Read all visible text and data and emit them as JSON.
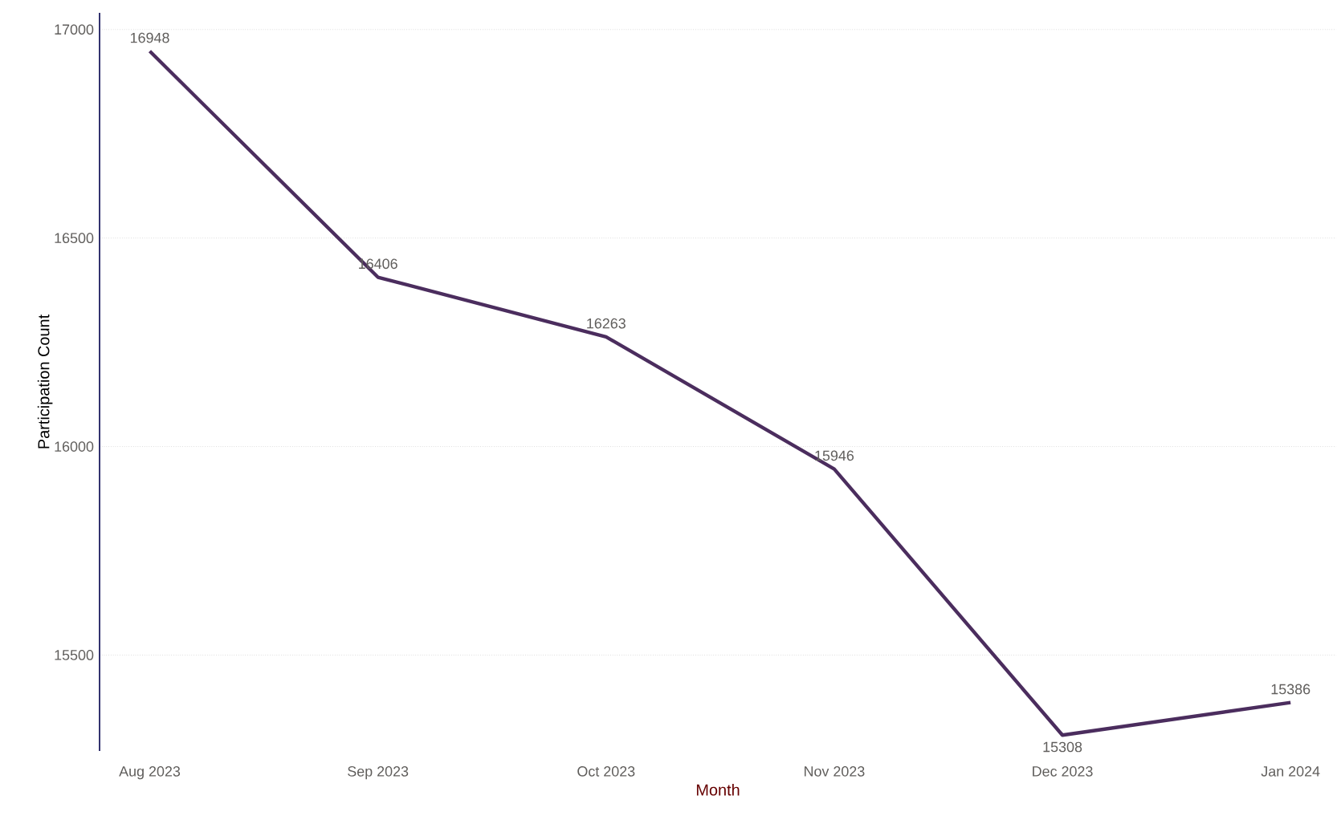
{
  "chart_data": {
    "type": "line",
    "xlabel": "Month",
    "ylabel": "Participation Count",
    "categories": [
      "Aug 2023",
      "Sep 2023",
      "Oct 2023",
      "Nov 2023",
      "Dec 2023",
      "Jan 2024"
    ],
    "values": [
      16948,
      16406,
      16263,
      15946,
      15308,
      15386
    ],
    "color": "#4b2d5e",
    "ylim": [
      15270,
      17040
    ],
    "yticks": [
      15500,
      16000,
      16500,
      17000
    ],
    "grid": "y",
    "data_labels": true,
    "marker": "none",
    "line_style": "solid"
  }
}
